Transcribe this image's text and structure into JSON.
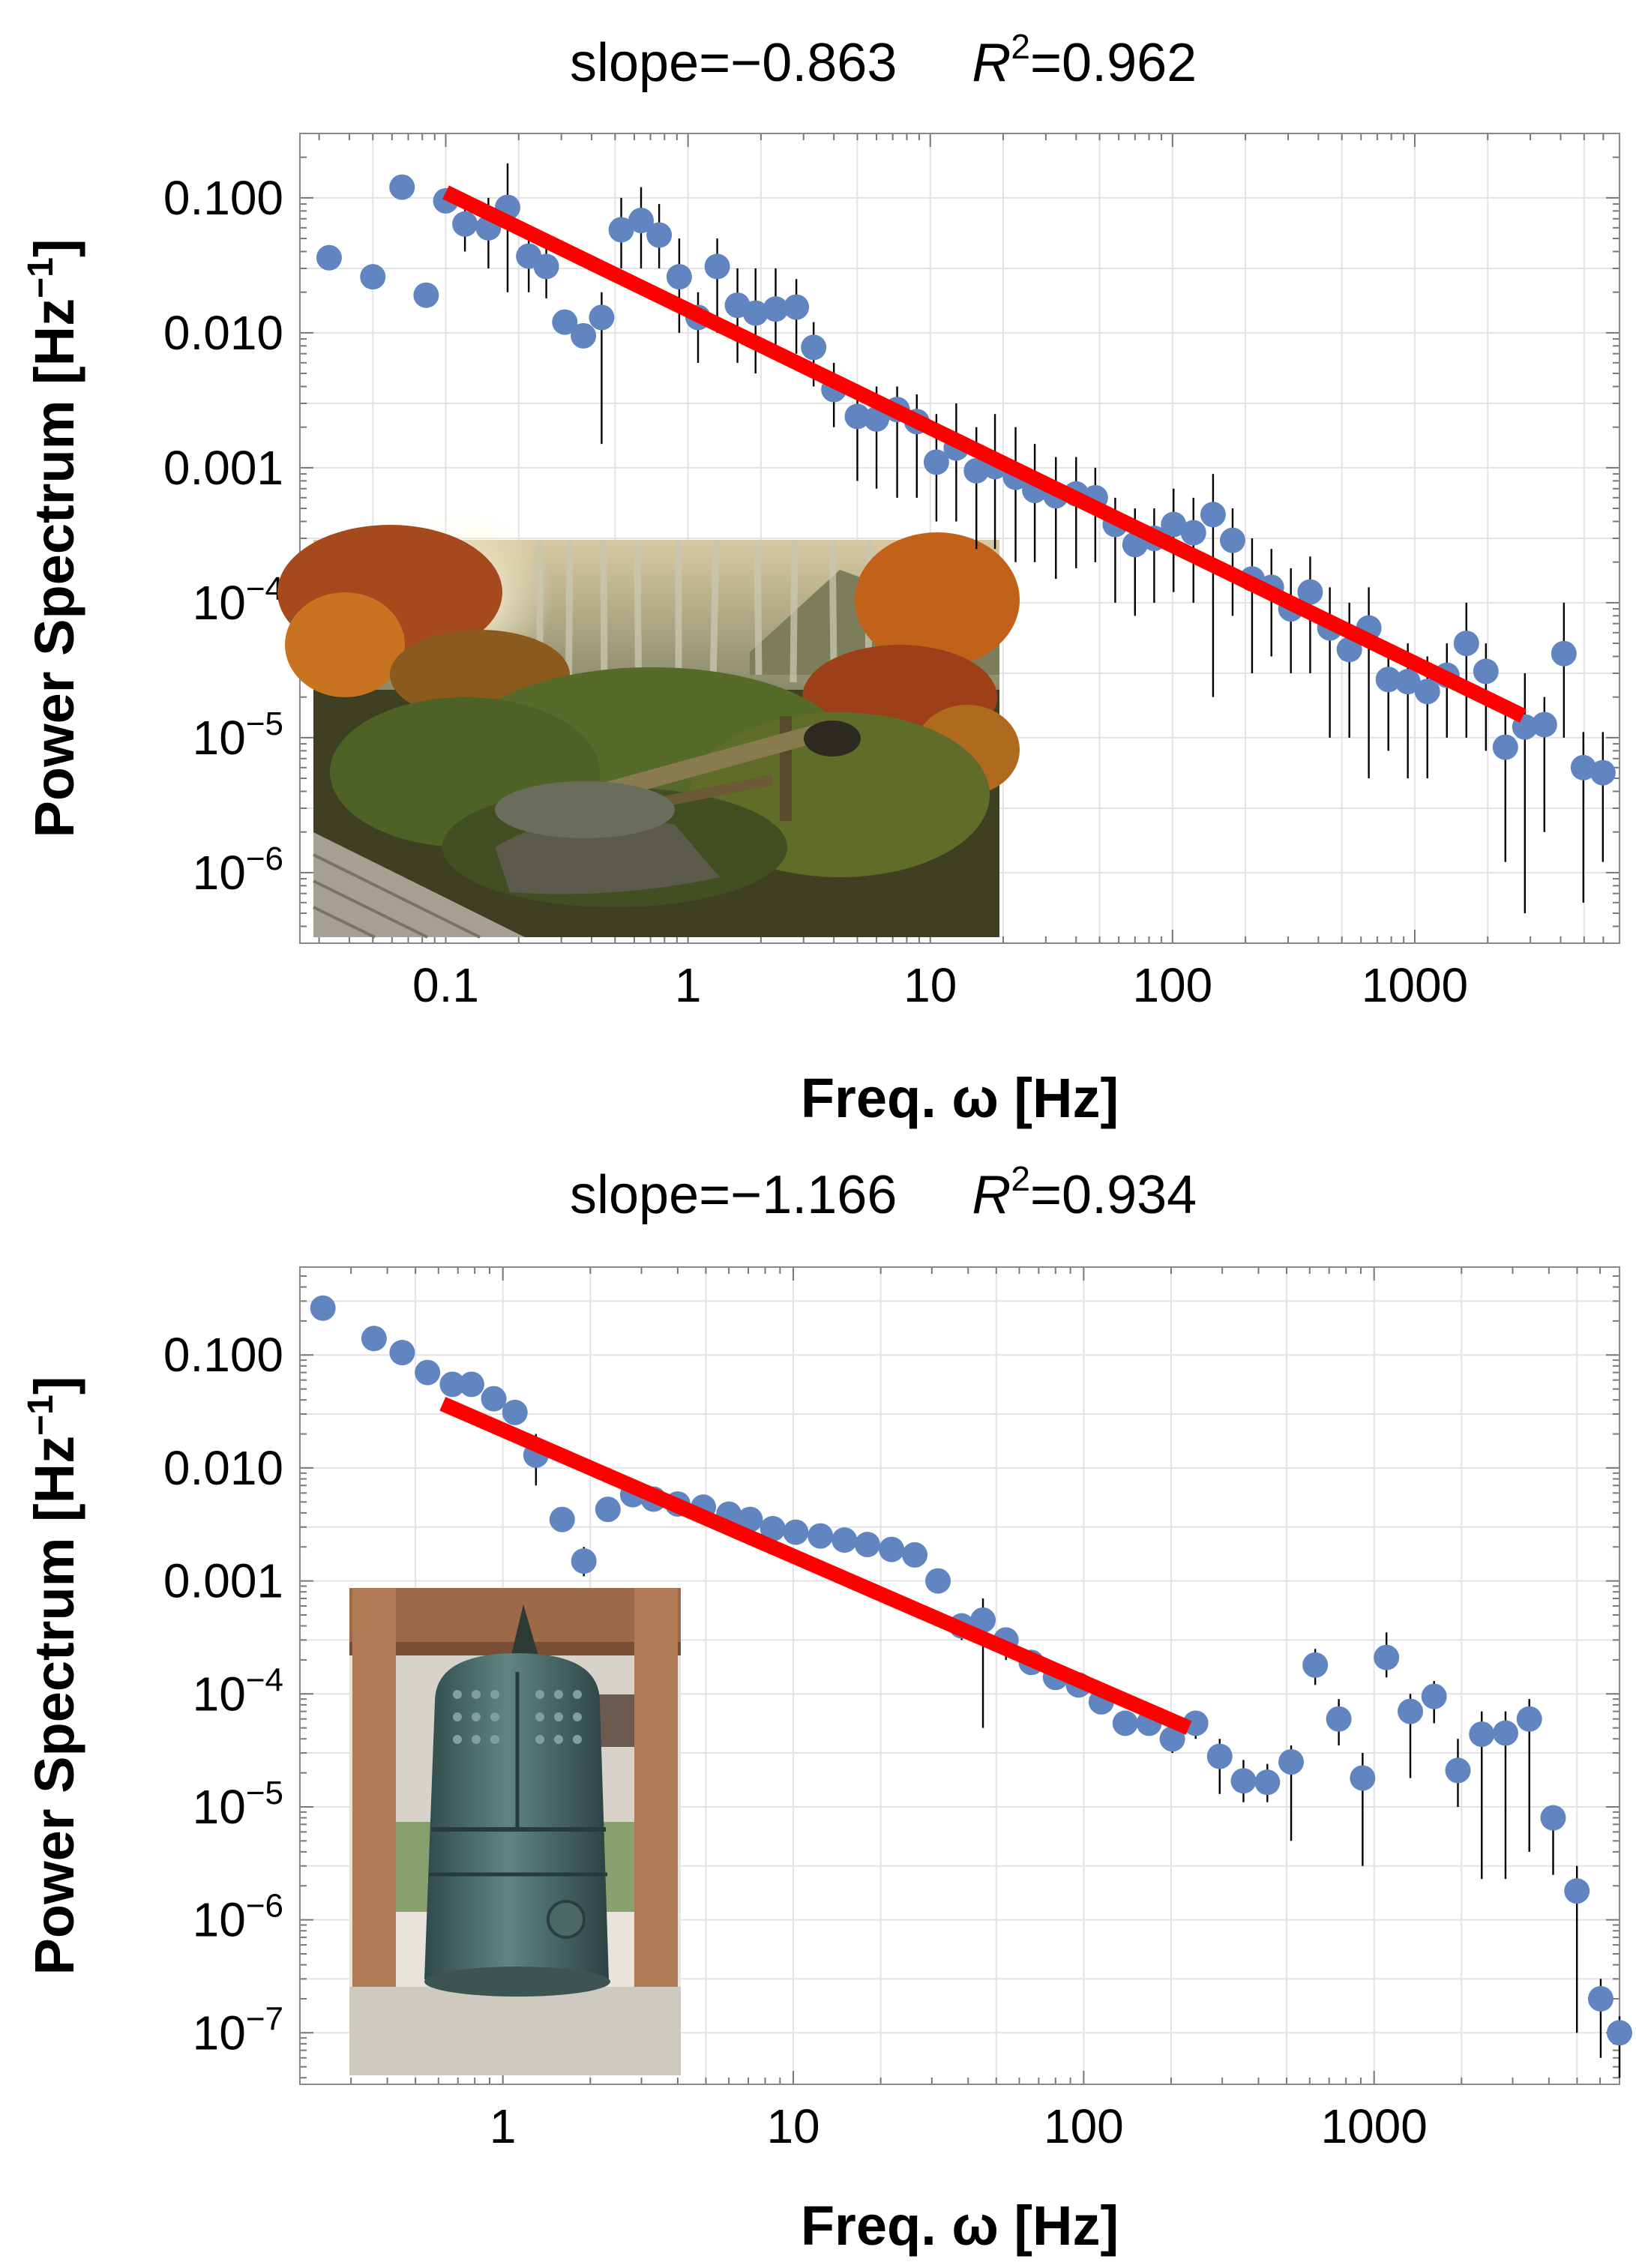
{
  "chart_data": [
    {
      "type": "scatter",
      "scale": "log-log",
      "title": {
        "prefix": "slope=−0.863",
        "r2_label": "R",
        "r2_sup": "2",
        "r2_value": "=0.962"
      },
      "slope": -0.863,
      "r_squared": 0.962,
      "xlabel": "Freq. ω [Hz]",
      "ylabel": {
        "main": "Power Spectrum [Hz",
        "sup": "−1",
        "close": "]"
      },
      "xlim": [
        0.025,
        7000
      ],
      "ylim": [
        3e-07,
        0.3
      ],
      "x_ticks": [
        {
          "value": 0.1,
          "label": "0.1"
        },
        {
          "value": 1,
          "label": "1"
        },
        {
          "value": 10,
          "label": "10"
        },
        {
          "value": 100,
          "label": "100"
        },
        {
          "value": 1000,
          "label": "1000"
        }
      ],
      "y_ticks": [
        {
          "value": 0.1,
          "label": "0.100"
        },
        {
          "value": 0.01,
          "label": "0.010"
        },
        {
          "value": 0.001,
          "label": "0.001"
        },
        {
          "value": 0.0001,
          "base": "10",
          "exp": "−4"
        },
        {
          "value": 1e-05,
          "base": "10",
          "exp": "−5"
        },
        {
          "value": 1e-06,
          "base": "10",
          "exp": "−6"
        }
      ],
      "fit": {
        "x": [
          0.1,
          2800
        ],
        "y": [
          0.11,
          1.45e-05
        ],
        "color": "#ff0000"
      },
      "inset": "photo of autumn Japanese garden with bamboo water spout (shishi-odoshi)",
      "points": [
        {
          "x": 0.033,
          "y": 0.036
        },
        {
          "x": 0.05,
          "y": 0.026
        },
        {
          "x": 0.066,
          "y": 0.12
        },
        {
          "x": 0.083,
          "y": 0.019
        },
        {
          "x": 0.1,
          "y": 0.095
        },
        {
          "x": 0.12,
          "y": 0.064,
          "lo": 0.04,
          "hi": 0.09
        },
        {
          "x": 0.15,
          "y": 0.06,
          "lo": 0.03,
          "hi": 0.1
        },
        {
          "x": 0.18,
          "y": 0.085,
          "lo": 0.02,
          "hi": 0.18
        },
        {
          "x": 0.22,
          "y": 0.037,
          "lo": 0.02,
          "hi": 0.06
        },
        {
          "x": 0.26,
          "y": 0.031,
          "lo": 0.018,
          "hi": 0.05
        },
        {
          "x": 0.31,
          "y": 0.012
        },
        {
          "x": 0.37,
          "y": 0.0095
        },
        {
          "x": 0.44,
          "y": 0.013,
          "lo": 0.0015,
          "hi": 0.02
        },
        {
          "x": 0.53,
          "y": 0.058,
          "lo": 0.03,
          "hi": 0.1
        },
        {
          "x": 0.64,
          "y": 0.068,
          "lo": 0.03,
          "hi": 0.12
        },
        {
          "x": 0.76,
          "y": 0.053,
          "lo": 0.03,
          "hi": 0.09
        },
        {
          "x": 0.92,
          "y": 0.026,
          "lo": 0.01,
          "hi": 0.05
        },
        {
          "x": 1.1,
          "y": 0.013,
          "lo": 0.006,
          "hi": 0.02
        },
        {
          "x": 1.32,
          "y": 0.031,
          "lo": 0.01,
          "hi": 0.05
        },
        {
          "x": 1.6,
          "y": 0.016,
          "lo": 0.006,
          "hi": 0.03
        },
        {
          "x": 1.9,
          "y": 0.014,
          "lo": 0.005,
          "hi": 0.03
        },
        {
          "x": 2.3,
          "y": 0.015,
          "lo": 0.007,
          "hi": 0.03
        },
        {
          "x": 2.8,
          "y": 0.0155,
          "lo": 0.007,
          "hi": 0.025
        },
        {
          "x": 3.3,
          "y": 0.0078,
          "lo": 0.004,
          "hi": 0.012
        },
        {
          "x": 4,
          "y": 0.0038,
          "lo": 0.002,
          "hi": 0.006
        },
        {
          "x": 5,
          "y": 0.0024,
          "lo": 0.0008,
          "hi": 0.004
        },
        {
          "x": 6,
          "y": 0.0023,
          "lo": 0.0007,
          "hi": 0.004
        },
        {
          "x": 7.3,
          "y": 0.0027,
          "lo": 0.0006,
          "hi": 0.004
        },
        {
          "x": 8.8,
          "y": 0.0022,
          "lo": 0.0006,
          "hi": 0.0035
        },
        {
          "x": 10.6,
          "y": 0.0011,
          "lo": 0.0004,
          "hi": 0.0025
        },
        {
          "x": 12.8,
          "y": 0.0014,
          "lo": 0.0004,
          "hi": 0.003
        },
        {
          "x": 15.5,
          "y": 0.00095,
          "lo": 0.00025,
          "hi": 0.002
        },
        {
          "x": 18.5,
          "y": 0.00102,
          "lo": 0.00025,
          "hi": 0.0025
        },
        {
          "x": 22.5,
          "y": 0.00085,
          "lo": 0.0002,
          "hi": 0.002
        },
        {
          "x": 27,
          "y": 0.00068,
          "lo": 0.0002,
          "hi": 0.0015
        },
        {
          "x": 33,
          "y": 0.00062,
          "lo": 0.00015,
          "hi": 0.0012
        },
        {
          "x": 40,
          "y": 0.00064,
          "lo": 0.00018,
          "hi": 0.0012
        },
        {
          "x": 48,
          "y": 0.0006,
          "lo": 0.0002,
          "hi": 0.001
        },
        {
          "x": 58,
          "y": 0.00038,
          "lo": 0.0001,
          "hi": 0.0006
        },
        {
          "x": 70,
          "y": 0.00027,
          "lo": 8e-05,
          "hi": 0.0005
        },
        {
          "x": 84,
          "y": 0.0003,
          "lo": 0.0001,
          "hi": 0.0005
        },
        {
          "x": 101,
          "y": 0.00038,
          "lo": 0.00012,
          "hi": 0.0007
        },
        {
          "x": 122,
          "y": 0.00033,
          "lo": 0.0001,
          "hi": 0.0006
        },
        {
          "x": 147,
          "y": 0.00045,
          "lo": 2e-05,
          "hi": 0.0009
        },
        {
          "x": 177,
          "y": 0.00029,
          "lo": 8e-05,
          "hi": 0.0005
        },
        {
          "x": 213,
          "y": 0.00015,
          "lo": 3e-05,
          "hi": 0.0003
        },
        {
          "x": 256,
          "y": 0.00013,
          "lo": 4e-05,
          "hi": 0.00025
        },
        {
          "x": 308,
          "y": 9e-05,
          "lo": 3e-05,
          "hi": 0.00018
        },
        {
          "x": 370,
          "y": 0.00012,
          "lo": 3e-05,
          "hi": 0.00022
        },
        {
          "x": 446,
          "y": 6.5e-05,
          "lo": 1e-05,
          "hi": 0.00013
        },
        {
          "x": 537,
          "y": 4.5e-05,
          "lo": 1e-05,
          "hi": 0.0001
        },
        {
          "x": 646,
          "y": 6.5e-05,
          "lo": 5e-06,
          "hi": 0.00013
        },
        {
          "x": 778,
          "y": 2.7e-05,
          "lo": 8e-06,
          "hi": 5e-05
        },
        {
          "x": 936,
          "y": 2.6e-05,
          "lo": 5e-06,
          "hi": 5e-05
        },
        {
          "x": 1127,
          "y": 2.2e-05,
          "lo": 5e-06,
          "hi": 4e-05
        },
        {
          "x": 1357,
          "y": 2.9e-05,
          "lo": 1e-05,
          "hi": 5e-05
        },
        {
          "x": 1633,
          "y": 5e-05,
          "lo": 1e-05,
          "hi": 0.0001
        },
        {
          "x": 1966,
          "y": 3.1e-05,
          "lo": 8e-06,
          "hi": 5e-05
        },
        {
          "x": 2366,
          "y": 8.5e-06,
          "lo": 1.2e-06,
          "hi": 1.8e-05
        },
        {
          "x": 2848,
          "y": 1.2e-05,
          "lo": 5e-07,
          "hi": 3e-05
        },
        {
          "x": 3428,
          "y": 1.25e-05,
          "lo": 2e-06,
          "hi": 2e-05
        },
        {
          "x": 4126,
          "y": 4.2e-05,
          "lo": 1e-05,
          "hi": 0.0001
        },
        {
          "x": 4966,
          "y": 6e-06,
          "lo": 6e-07,
          "hi": 1.1e-05
        },
        {
          "x": 5977,
          "y": 5.5e-06,
          "lo": 1.2e-06,
          "hi": 1.1e-05
        }
      ]
    },
    {
      "type": "scatter",
      "scale": "log-log",
      "title": {
        "prefix": "slope=−1.166",
        "r2_label": "R",
        "r2_sup": "2",
        "r2_value": "=0.934"
      },
      "slope": -1.166,
      "r_squared": 0.934,
      "xlabel": "Freq. ω [Hz]",
      "ylabel": {
        "main": "Power Spectrum [Hz",
        "sup": "−1",
        "close": "]"
      },
      "xlim": [
        0.2,
        7000
      ],
      "ylim": [
        3.5e-08,
        0.6
      ],
      "x_ticks": [
        {
          "value": 1,
          "label": "1"
        },
        {
          "value": 10,
          "label": "10"
        },
        {
          "value": 100,
          "label": "100"
        },
        {
          "value": 1000,
          "label": "1000"
        }
      ],
      "y_ticks": [
        {
          "value": 0.1,
          "label": "0.100"
        },
        {
          "value": 0.01,
          "label": "0.010"
        },
        {
          "value": 0.001,
          "label": "0.001"
        },
        {
          "value": 0.0001,
          "base": "10",
          "exp": "−4"
        },
        {
          "value": 1e-05,
          "base": "10",
          "exp": "−5"
        },
        {
          "value": 1e-06,
          "base": "10",
          "exp": "−6"
        },
        {
          "value": 1e-07,
          "base": "10",
          "exp": "−7"
        }
      ],
      "fit": {
        "x": [
          0.62,
          230
        ],
        "y": [
          0.037,
          5e-05
        ],
        "color": "#ff0000"
      },
      "inset": "photo of bronze Japanese temple bell (bonsho) hanging in wooden pavilion",
      "points": [
        {
          "x": 0.24,
          "y": 0.26
        },
        {
          "x": 0.36,
          "y": 0.14
        },
        {
          "x": 0.45,
          "y": 0.105
        },
        {
          "x": 0.55,
          "y": 0.07
        },
        {
          "x": 0.67,
          "y": 0.055
        },
        {
          "x": 0.78,
          "y": 0.055
        },
        {
          "x": 0.93,
          "y": 0.041
        },
        {
          "x": 1.1,
          "y": 0.031
        },
        {
          "x": 1.3,
          "y": 0.013,
          "lo": 0.007,
          "hi": 0.02
        },
        {
          "x": 1.6,
          "y": 0.0035
        },
        {
          "x": 1.9,
          "y": 0.0015,
          "lo": 0.0011,
          "hi": 0.002
        },
        {
          "x": 2.3,
          "y": 0.0043
        },
        {
          "x": 2.8,
          "y": 0.0058
        },
        {
          "x": 3.3,
          "y": 0.0053
        },
        {
          "x": 4,
          "y": 0.0048
        },
        {
          "x": 4.9,
          "y": 0.0045
        },
        {
          "x": 6,
          "y": 0.0039
        },
        {
          "x": 7.1,
          "y": 0.0035
        },
        {
          "x": 8.5,
          "y": 0.0029
        },
        {
          "x": 10.2,
          "y": 0.0027
        },
        {
          "x": 12.4,
          "y": 0.0025
        },
        {
          "x": 15,
          "y": 0.0023
        },
        {
          "x": 18,
          "y": 0.0021
        },
        {
          "x": 21.8,
          "y": 0.0019
        },
        {
          "x": 26.2,
          "y": 0.0017
        },
        {
          "x": 31.5,
          "y": 0.001
        },
        {
          "x": 38,
          "y": 0.0004,
          "lo": 0.0003,
          "hi": 0.0005
        },
        {
          "x": 45,
          "y": 0.00045,
          "lo": 5e-05,
          "hi": 0.0007
        },
        {
          "x": 54,
          "y": 0.0003,
          "lo": 0.0002,
          "hi": 0.00035
        },
        {
          "x": 66,
          "y": 0.00019
        },
        {
          "x": 80,
          "y": 0.00014
        },
        {
          "x": 96,
          "y": 0.00012
        },
        {
          "x": 115,
          "y": 8.5e-05
        },
        {
          "x": 139,
          "y": 5.5e-05
        },
        {
          "x": 168,
          "y": 5.5e-05
        },
        {
          "x": 202,
          "y": 4e-05,
          "lo": 3e-05,
          "hi": 5e-05
        },
        {
          "x": 243,
          "y": 5.5e-05,
          "lo": 4e-05,
          "hi": 7e-05
        },
        {
          "x": 294,
          "y": 2.8e-05,
          "lo": 1.3e-05,
          "hi": 4e-05
        },
        {
          "x": 355,
          "y": 1.7e-05,
          "lo": 1.1e-05,
          "hi": 2.6e-05
        },
        {
          "x": 429,
          "y": 1.65e-05,
          "lo": 1.1e-05,
          "hi": 2.4e-05
        },
        {
          "x": 518,
          "y": 2.5e-05,
          "lo": 5e-06,
          "hi": 3.5e-05
        },
        {
          "x": 627,
          "y": 0.00018,
          "lo": 0.00012,
          "hi": 0.00025
        },
        {
          "x": 756,
          "y": 6e-05,
          "lo": 3.5e-05,
          "hi": 9e-05
        },
        {
          "x": 913,
          "y": 1.8e-05,
          "lo": 3e-06,
          "hi": 3e-05
        },
        {
          "x": 1103,
          "y": 0.00021,
          "lo": 0.00014,
          "hi": 0.00035
        },
        {
          "x": 1333,
          "y": 7e-05,
          "lo": 1.8e-05,
          "hi": 0.0001
        },
        {
          "x": 1609,
          "y": 9.5e-05,
          "lo": 5.5e-05,
          "hi": 0.00013
        },
        {
          "x": 1944,
          "y": 2.1e-05,
          "lo": 1e-05,
          "hi": 4e-05
        },
        {
          "x": 2348,
          "y": 4.4e-05,
          "lo": 2.3e-06,
          "hi": 7e-05
        },
        {
          "x": 2835,
          "y": 4.5e-05,
          "lo": 2.3e-06,
          "hi": 7e-05
        },
        {
          "x": 3424,
          "y": 6e-05,
          "lo": 4e-06,
          "hi": 9e-05
        },
        {
          "x": 4136,
          "y": 8e-06,
          "lo": 2.5e-06,
          "hi": 1e-05
        },
        {
          "x": 4994,
          "y": 1.8e-06,
          "lo": 1e-07,
          "hi": 3e-06
        },
        {
          "x": 6031,
          "y": 2e-07,
          "lo": 6e-08,
          "hi": 3e-07
        },
        {
          "x": 7000,
          "y": 1e-07,
          "lo": 4e-08,
          "hi": 1.4e-07
        }
      ]
    }
  ]
}
